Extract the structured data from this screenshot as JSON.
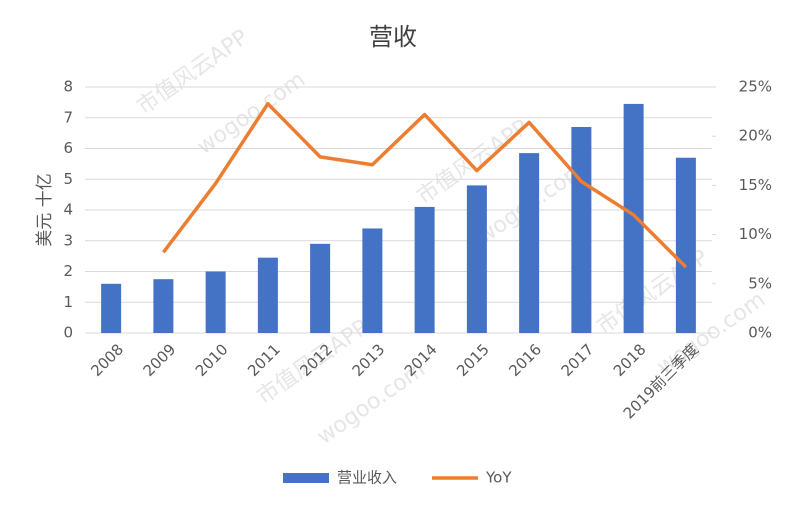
{
  "chart_data": {
    "type": "bar-line",
    "title": "营收",
    "y_label": "美元 十亿",
    "watermark": [
      "市值风云APP",
      "wogoo.com"
    ],
    "categories": [
      "2008",
      "2009",
      "2010",
      "2011",
      "2012",
      "2013",
      "2014",
      "2015",
      "2016",
      "2017",
      "2018",
      "2019前三季度"
    ],
    "series": [
      {
        "name": "营业收入",
        "type": "bar",
        "color": "#4472c4",
        "values": [
          1.6,
          1.75,
          2.0,
          2.45,
          2.9,
          3.4,
          4.1,
          4.8,
          5.85,
          6.7,
          7.45,
          5.7
        ]
      },
      {
        "name": "YoY",
        "type": "line",
        "axis": "y2",
        "color": "#ed7d31",
        "values": [
          null,
          8.2,
          15.2,
          23.3,
          17.9,
          17.1,
          22.2,
          16.5,
          21.4,
          15.4,
          12.0,
          6.7
        ]
      }
    ],
    "ylim": [
      0,
      8
    ],
    "yticks": [
      0,
      1,
      2,
      3,
      4,
      5,
      6,
      7,
      8
    ],
    "y2lim": [
      0,
      25
    ],
    "y2ticks": [
      {
        "value": 0,
        "label": "0%"
      },
      {
        "value": 5,
        "label": "5%"
      },
      {
        "value": 10,
        "label": "10%"
      },
      {
        "value": 15,
        "label": "15%"
      },
      {
        "value": 20,
        "label": "20%"
      },
      {
        "value": 25,
        "label": "25%"
      }
    ],
    "grid": true,
    "legend": "bottom"
  }
}
